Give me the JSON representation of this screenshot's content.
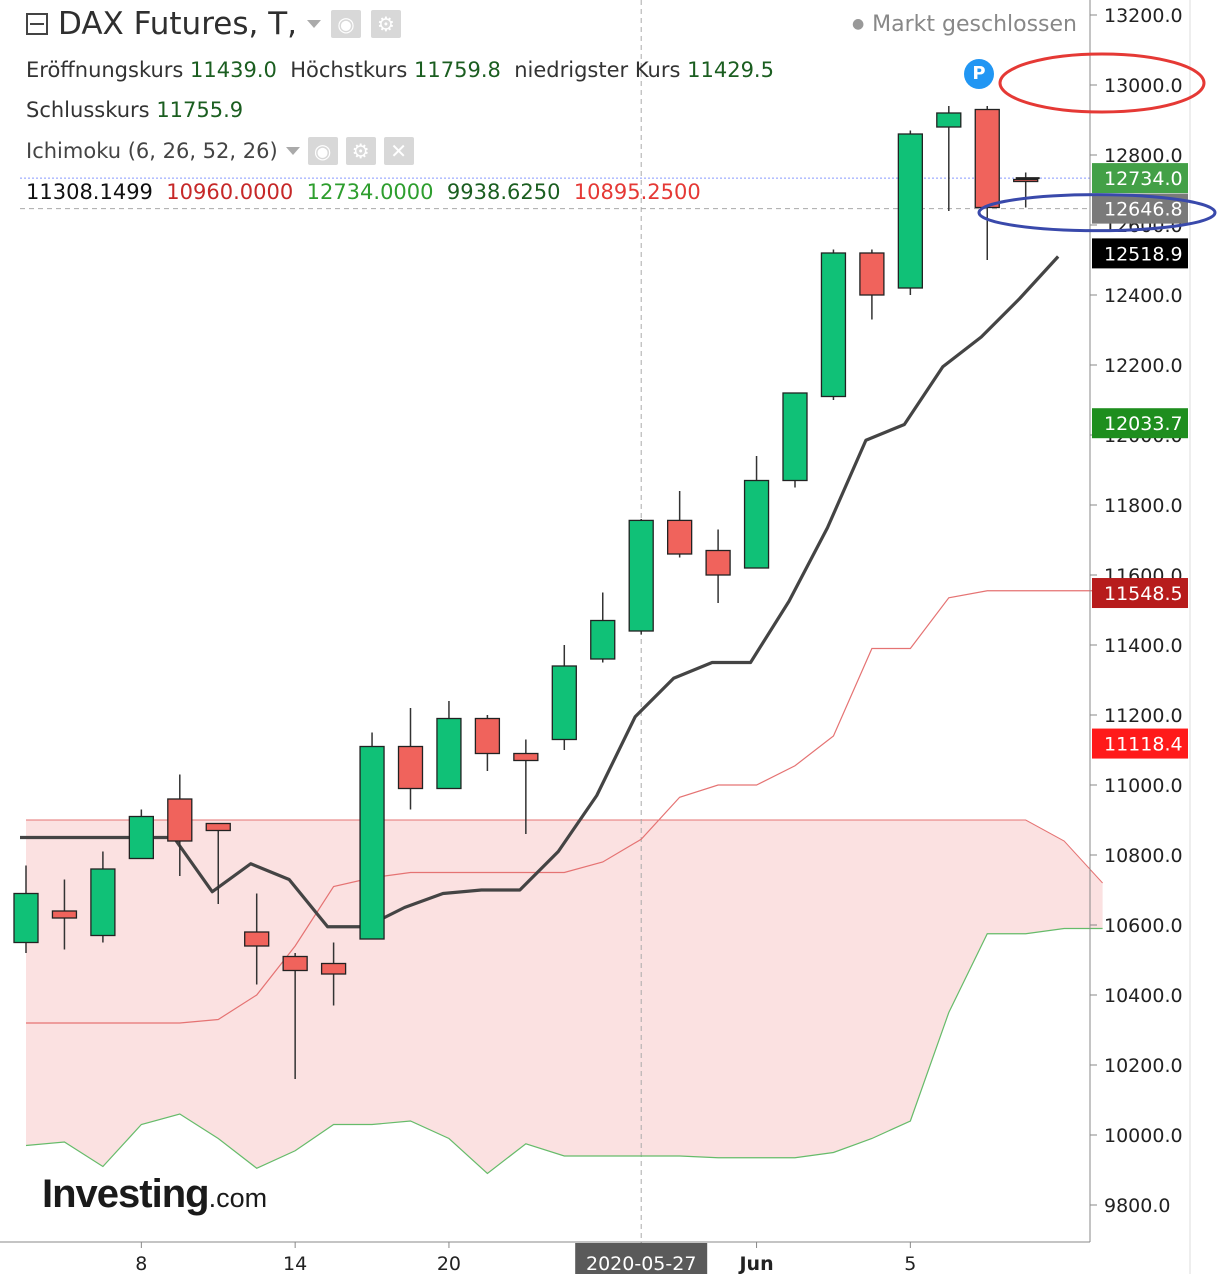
{
  "header": {
    "title": "DAX Futures, T,",
    "market_status": "Markt geschlossen",
    "ohlc": {
      "open_label": "Eröffnungskurs",
      "open_value": "11439.0",
      "high_label": "Höchstkurs",
      "high_value": "11759.8",
      "low_label": "niedrigster Kurs",
      "low_value": "11429.5",
      "close_label": "Schlusskurs",
      "close_value": "11755.9"
    },
    "indicator_label": "Ichimoku (6, 26, 52, 26)",
    "indicator_values": [
      "11308.1499",
      "10960.0000",
      "12734.0000",
      "9938.6250",
      "10895.2500"
    ],
    "indicator_value_colors": [
      "#111111",
      "#c62828",
      "#2e9e2e",
      "#1b5e20",
      "#e53935"
    ]
  },
  "badge": "P",
  "logo": {
    "main": "Investing",
    "suffix": ".com"
  },
  "colors": {
    "up": "#10c177",
    "down": "#f0635c",
    "base_line": "#444444",
    "cloud_fill": "#fbe1e1",
    "span_a": "#e57373",
    "span_b": "#66bb6a",
    "price_line": "#8899ff",
    "annot_red": "#e53935",
    "annot_blue": "#3949ab"
  },
  "chart_data": {
    "type": "candlestick",
    "ylim": [
      9700,
      13300
    ],
    "y_ticks": [
      "13200.0",
      "13000.0",
      "12800.0",
      "12600.0",
      "12400.0",
      "12200.0",
      "12000.0",
      "11800.0",
      "11600.0",
      "11400.0",
      "11200.0",
      "11000.0",
      "10800.0",
      "10600.0",
      "10400.0",
      "10200.0",
      "10000.0",
      "9800.0"
    ],
    "x_ticks": [
      {
        "label": "8",
        "index": 3
      },
      {
        "label": "14",
        "index": 7
      },
      {
        "label": "20",
        "index": 11
      },
      {
        "label": "2020-05-27",
        "index": 16,
        "highlight": true
      },
      {
        "label": "Jun",
        "index": 19,
        "bold": true
      },
      {
        "label": "5",
        "index": 23
      }
    ],
    "candles": [
      {
        "o": 10550,
        "h": 10770,
        "l": 10520,
        "c": 10690
      },
      {
        "o": 10640,
        "h": 10730,
        "l": 10530,
        "c": 10620
      },
      {
        "o": 10570,
        "h": 10810,
        "l": 10550,
        "c": 10760
      },
      {
        "o": 10790,
        "h": 10930,
        "l": 10790,
        "c": 10910
      },
      {
        "o": 10960,
        "h": 11030,
        "l": 10740,
        "c": 10840
      },
      {
        "o": 10890,
        "h": 10890,
        "l": 10660,
        "c": 10870
      },
      {
        "o": 10580,
        "h": 10690,
        "l": 10430,
        "c": 10540
      },
      {
        "o": 10510,
        "h": 10520,
        "l": 10160,
        "c": 10470
      },
      {
        "o": 10490,
        "h": 10550,
        "l": 10370,
        "c": 10460
      },
      {
        "o": 10560,
        "h": 11150,
        "l": 10560,
        "c": 11110
      },
      {
        "o": 11110,
        "h": 11220,
        "l": 10930,
        "c": 10990
      },
      {
        "o": 10990,
        "h": 11240,
        "l": 10990,
        "c": 11190
      },
      {
        "o": 11190,
        "h": 11200,
        "l": 11040,
        "c": 11090
      },
      {
        "o": 11090,
        "h": 11130,
        "l": 10860,
        "c": 11070
      },
      {
        "o": 11130,
        "h": 11400,
        "l": 11100,
        "c": 11340
      },
      {
        "o": 11360,
        "h": 11550,
        "l": 11350,
        "c": 11470
      },
      {
        "o": 11440,
        "h": 11760,
        "l": 11430,
        "c": 11756
      },
      {
        "o": 11756,
        "h": 11840,
        "l": 11650,
        "c": 11660
      },
      {
        "o": 11670,
        "h": 11730,
        "l": 11520,
        "c": 11600
      },
      {
        "o": 11620,
        "h": 11940,
        "l": 11620,
        "c": 11870
      },
      {
        "o": 11870,
        "h": 12120,
        "l": 11850,
        "c": 12120
      },
      {
        "o": 12110,
        "h": 12530,
        "l": 12100,
        "c": 12520
      },
      {
        "o": 12520,
        "h": 12530,
        "l": 12330,
        "c": 12400
      },
      {
        "o": 12420,
        "h": 12870,
        "l": 12400,
        "c": 12860
      },
      {
        "o": 12880,
        "h": 12940,
        "l": 12640,
        "c": 12920
      },
      {
        "o": 12930,
        "h": 12940,
        "l": 12500,
        "c": 12650
      },
      {
        "o": 12730,
        "h": 12750,
        "l": 12650,
        "c": 12725
      }
    ],
    "base_line": [
      10850,
      10850,
      10850,
      10850,
      10850,
      10695,
      10775,
      10730,
      10595,
      10595,
      10650,
      10690,
      10700,
      10700,
      10810,
      10970,
      11195,
      11305,
      11350,
      11350,
      11525,
      11735,
      11985,
      12030,
      12195,
      12280,
      12390,
      12510
    ],
    "span_a_x": [
      0,
      1,
      2,
      3,
      4,
      5,
      6,
      7,
      8,
      9,
      10,
      11,
      12,
      13,
      14,
      15,
      16,
      17,
      18,
      19,
      20,
      21,
      22,
      23,
      24,
      25,
      26,
      27,
      28
    ],
    "span_a": [
      10320,
      10320,
      10320,
      10320,
      10320,
      10330,
      10400,
      10540,
      10710,
      10735,
      10750,
      10750,
      10750,
      10750,
      10750,
      10780,
      10845,
      10965,
      11000,
      11000,
      11055,
      11140,
      11390,
      11390,
      11535,
      11555,
      11555,
      11555,
      11555
    ],
    "span_b_x": [
      0,
      1,
      2,
      3,
      4,
      5,
      6,
      7,
      8,
      9,
      10,
      11,
      12,
      13,
      14,
      15,
      16,
      17,
      18,
      19,
      20,
      21,
      22,
      23,
      24,
      25,
      26,
      27,
      28
    ],
    "span_b": [
      9970,
      9980,
      9910,
      10030,
      10060,
      9990,
      9905,
      9955,
      10030,
      10030,
      10040,
      9990,
      9890,
      9975,
      9940,
      9940,
      9940,
      9940,
      9935,
      9935,
      9935,
      9950,
      9990,
      10040,
      10350,
      10575,
      10575,
      10590,
      10590
    ],
    "cloud_top_x": [
      0,
      25,
      26,
      27,
      28
    ],
    "cloud_top": [
      10900,
      10900,
      10900,
      10840,
      10720
    ],
    "price_line": 12734.0,
    "crosshair_price": 12646.8,
    "axis_labels": [
      {
        "text": "12734.0",
        "value": 12734.0,
        "bg": "#43a047",
        "fg": "#ffffff"
      },
      {
        "text": "12646.8",
        "value": 12646.8,
        "bg": "#7a7a7a",
        "fg": "#ffffff"
      },
      {
        "text": "12518.9",
        "value": 12518.9,
        "bg": "#000000",
        "fg": "#ffffff"
      },
      {
        "text": "12033.7",
        "value": 12033.7,
        "bg": "#1e8e1e",
        "fg": "#ffffff"
      },
      {
        "text": "11548.5",
        "value": 11548.5,
        "bg": "#b71c1c",
        "fg": "#ffffff"
      },
      {
        "text": "11118.4",
        "value": 11118.4,
        "bg": "#ff1a1a",
        "fg": "#ffffff"
      }
    ],
    "annotations": [
      {
        "shape": "ellipse",
        "color": "red",
        "around_value": 13000
      },
      {
        "shape": "ellipse",
        "color": "blue",
        "around_value": 12646.8
      }
    ]
  }
}
